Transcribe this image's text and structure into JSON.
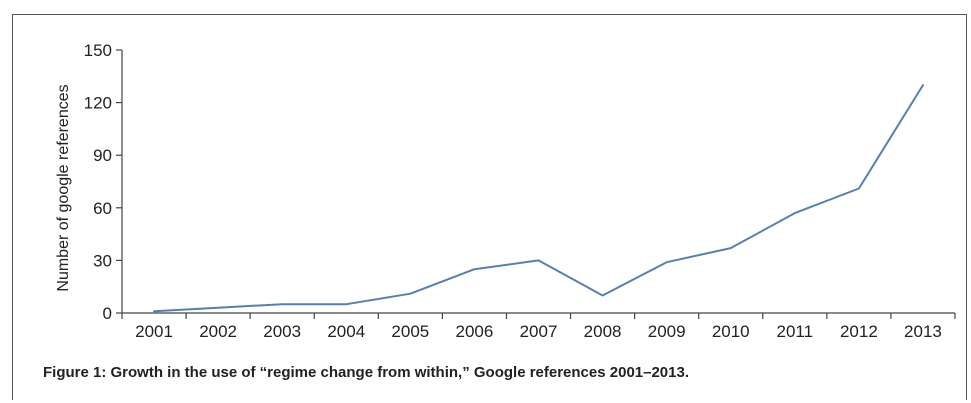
{
  "chart_data": {
    "type": "line",
    "x": [
      "2001",
      "2002",
      "2003",
      "2004",
      "2005",
      "2006",
      "2007",
      "2008",
      "2009",
      "2010",
      "2011",
      "2012",
      "2013"
    ],
    "series": [
      {
        "values": [
          1,
          3,
          5,
          5,
          11,
          25,
          30,
          10,
          29,
          37,
          57,
          71,
          130
        ]
      }
    ],
    "ylabel": "Number of google references",
    "xlabel": "",
    "ylim": [
      0,
      150
    ],
    "yticks": [
      0,
      30,
      60,
      90,
      120,
      150
    ],
    "grid": false,
    "line_color": "#5b7fa8"
  },
  "caption": "Figure 1:  Growth in the use of “regime change from within,” Google references 2001–2013."
}
